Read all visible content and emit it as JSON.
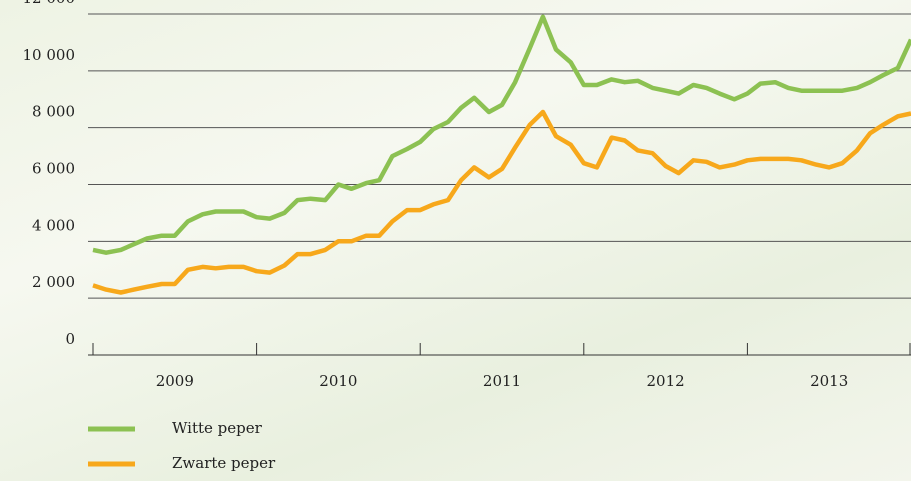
{
  "chart_data": {
    "type": "line",
    "x": [
      2009.0,
      2009.08,
      2009.17,
      2009.25,
      2009.33,
      2009.42,
      2009.5,
      2009.58,
      2009.67,
      2009.75,
      2009.83,
      2009.92,
      2010.0,
      2010.08,
      2010.17,
      2010.25,
      2010.33,
      2010.42,
      2010.5,
      2010.58,
      2010.67,
      2010.75,
      2010.83,
      2010.92,
      2011.0,
      2011.08,
      2011.17,
      2011.25,
      2011.33,
      2011.42,
      2011.5,
      2011.58,
      2011.67,
      2011.75,
      2011.83,
      2011.92,
      2012.0,
      2012.08,
      2012.17,
      2012.25,
      2012.33,
      2012.42,
      2012.5,
      2012.58,
      2012.67,
      2012.75,
      2012.83,
      2012.92,
      2013.0,
      2013.08,
      2013.17,
      2013.25,
      2013.33,
      2013.42,
      2013.5,
      2013.58,
      2013.67,
      2013.75,
      2013.83,
      2013.92,
      2014.0
    ],
    "series": [
      {
        "name": "Witte peper",
        "color": "#8cc152",
        "values": [
          3700,
          3600,
          3700,
          3900,
          4100,
          4200,
          4200,
          4700,
          4950,
          5050,
          5050,
          5050,
          4850,
          4800,
          5000,
          5450,
          5500,
          5450,
          6000,
          5850,
          6050,
          6150,
          7000,
          7250,
          7500,
          7950,
          8200,
          8700,
          9050,
          8550,
          8800,
          9600,
          10800,
          11900,
          10750,
          10300,
          9500,
          9500,
          9700,
          9600,
          9650,
          9400,
          9300,
          9200,
          9500,
          9400,
          9200,
          9000,
          9200,
          9550,
          9600,
          9400,
          9300,
          9300,
          9300,
          9300,
          9400,
          9600,
          9850,
          10100,
          11100
        ]
      },
      {
        "name": "Zwarte peper",
        "color": "#f7a81b",
        "values": [
          2450,
          2300,
          2200,
          2300,
          2400,
          2500,
          2500,
          3000,
          3100,
          3050,
          3100,
          3100,
          2950,
          2900,
          3150,
          3550,
          3550,
          3700,
          4000,
          4000,
          4200,
          4200,
          4700,
          5100,
          5100,
          5300,
          5450,
          6150,
          6600,
          6250,
          6550,
          7300,
          8100,
          8550,
          7700,
          7400,
          6750,
          6600,
          7650,
          7550,
          7200,
          7100,
          6650,
          6400,
          6850,
          6800,
          6600,
          6700,
          6850,
          6900,
          6900,
          6900,
          6850,
          6700,
          6600,
          6750,
          7200,
          7800,
          8100,
          8400,
          8500
        ]
      }
    ],
    "xlim": [
      2009,
      2014
    ],
    "xticks": [
      2009,
      2010,
      2011,
      2012,
      2013,
      2014
    ],
    "x_labels": [
      {
        "value": 2009.5,
        "label": "2009"
      },
      {
        "value": 2010.5,
        "label": "2010"
      },
      {
        "value": 2011.5,
        "label": "2011"
      },
      {
        "value": 2012.5,
        "label": "2012"
      },
      {
        "value": 2013.5,
        "label": "2013"
      }
    ],
    "ylim": [
      0,
      12000
    ],
    "yticks": [
      0,
      {
        "value": 2000,
        "label": "2 000"
      },
      {
        "value": 4000,
        "label": "4 000"
      },
      {
        "value": 6000,
        "label": "6 000"
      },
      {
        "value": 8000,
        "label": "8 000"
      },
      {
        "value": 10000,
        "label": "10 000"
      },
      {
        "value": 12000,
        "label": "12 000"
      }
    ],
    "grid": true,
    "legend": "bottom-left"
  }
}
